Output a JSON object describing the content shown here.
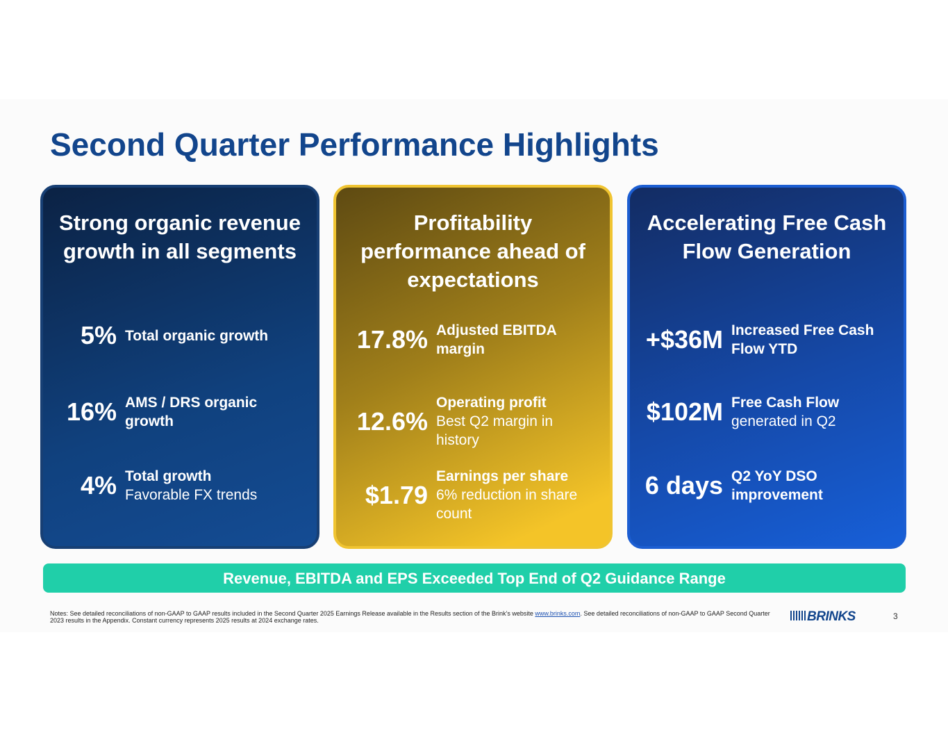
{
  "header": {
    "title": "Second Quarter Performance Highlights"
  },
  "cards": [
    {
      "heading": "Strong organic revenue growth in all segments",
      "metrics": [
        {
          "value": "5%",
          "label": "Total organic growth"
        },
        {
          "value": "16%",
          "label": "AMS / DRS organic growth"
        },
        {
          "value": "4%",
          "label": "Total growth",
          "detail": "Favorable FX trends"
        }
      ]
    },
    {
      "heading": "Profitability performance ahead of expectations",
      "metrics": [
        {
          "value": "17.8%",
          "label": "Adjusted EBITDA margin"
        },
        {
          "value": "12.6%",
          "label": "Operating profit",
          "detail": "Best Q2 margin in history"
        },
        {
          "value": "$1.79",
          "label": "Earnings per share",
          "detail": "6% reduction in share count"
        }
      ]
    },
    {
      "heading": "Accelerating Free Cash Flow Generation",
      "metrics": [
        {
          "value": "+$36M",
          "label": "Increased Free Cash Flow YTD"
        },
        {
          "value": "$102M",
          "label": "Free Cash Flow",
          "detail": "generated in Q2"
        },
        {
          "value": "6 days",
          "label": "Q2 YoY DSO improvement"
        }
      ]
    }
  ],
  "banner": "Revenue, EBITDA and EPS Exceeded Top End of Q2 Guidance Range",
  "footer": {
    "notes_before": "Notes: See detailed reconciliations of non-GAAP to GAAP results included in the Second Quarter 2025 Earnings Release available in the Results section of the Brink’s website ",
    "notes_link": "www.brinks.com",
    "notes_after": ". See detailed reconciliations of non-GAAP to GAAP Second Quarter 2023 results in the Appendix. Constant currency represents 2025 results at 2024 exchange rates.",
    "logo": "BRINKS",
    "page": "3"
  }
}
